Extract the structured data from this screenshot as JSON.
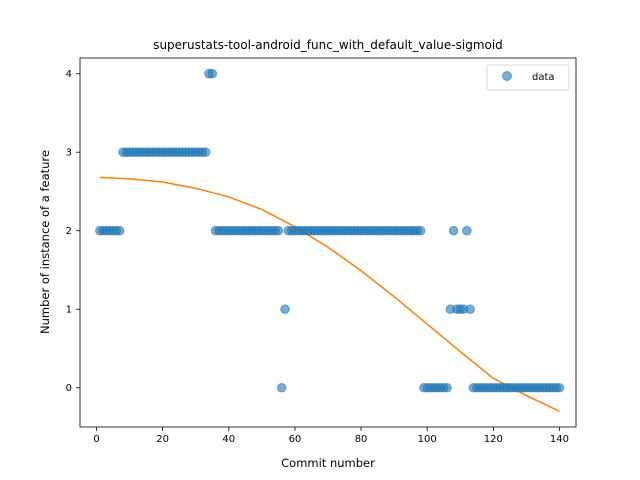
{
  "chart_data": {
    "type": "scatter",
    "title": "superustats-tool-android_func_with_default_value-sigmoid",
    "xlabel": "Commit number",
    "ylabel": "Number of instance of a feature",
    "xlim": [
      -5,
      145
    ],
    "ylim": [
      -0.5,
      4.2
    ],
    "xticks": [
      0,
      20,
      40,
      60,
      80,
      100,
      120,
      140
    ],
    "yticks": [
      0,
      1,
      2,
      3,
      4
    ],
    "grid": false,
    "legend_position": "top-right",
    "colors": {
      "data": "#1f77b4",
      "fit": "#ff7f0e"
    },
    "series": [
      {
        "name": "data",
        "kind": "scatter",
        "points": [
          [
            1,
            2
          ],
          [
            2,
            2
          ],
          [
            3,
            2
          ],
          [
            4,
            2
          ],
          [
            5,
            2
          ],
          [
            6,
            2
          ],
          [
            7,
            2
          ],
          [
            8,
            3
          ],
          [
            9,
            3
          ],
          [
            10,
            3
          ],
          [
            11,
            3
          ],
          [
            12,
            3
          ],
          [
            13,
            3
          ],
          [
            14,
            3
          ],
          [
            15,
            3
          ],
          [
            16,
            3
          ],
          [
            17,
            3
          ],
          [
            18,
            3
          ],
          [
            19,
            3
          ],
          [
            20,
            3
          ],
          [
            21,
            3
          ],
          [
            22,
            3
          ],
          [
            23,
            3
          ],
          [
            24,
            3
          ],
          [
            25,
            3
          ],
          [
            26,
            3
          ],
          [
            27,
            3
          ],
          [
            28,
            3
          ],
          [
            29,
            3
          ],
          [
            30,
            3
          ],
          [
            31,
            3
          ],
          [
            32,
            3
          ],
          [
            33,
            3
          ],
          [
            34,
            4
          ],
          [
            35,
            4
          ],
          [
            36,
            2
          ],
          [
            37,
            2
          ],
          [
            38,
            2
          ],
          [
            39,
            2
          ],
          [
            40,
            2
          ],
          [
            41,
            2
          ],
          [
            42,
            2
          ],
          [
            43,
            2
          ],
          [
            44,
            2
          ],
          [
            45,
            2
          ],
          [
            46,
            2
          ],
          [
            47,
            2
          ],
          [
            48,
            2
          ],
          [
            49,
            2
          ],
          [
            50,
            2
          ],
          [
            51,
            2
          ],
          [
            52,
            2
          ],
          [
            53,
            2
          ],
          [
            54,
            2
          ],
          [
            55,
            2
          ],
          [
            56,
            0
          ],
          [
            57,
            1
          ],
          [
            58,
            2
          ],
          [
            59,
            2
          ],
          [
            60,
            2
          ],
          [
            61,
            2
          ],
          [
            62,
            2
          ],
          [
            63,
            2
          ],
          [
            64,
            2
          ],
          [
            65,
            2
          ],
          [
            66,
            2
          ],
          [
            67,
            2
          ],
          [
            68,
            2
          ],
          [
            69,
            2
          ],
          [
            70,
            2
          ],
          [
            71,
            2
          ],
          [
            72,
            2
          ],
          [
            73,
            2
          ],
          [
            74,
            2
          ],
          [
            75,
            2
          ],
          [
            76,
            2
          ],
          [
            77,
            2
          ],
          [
            78,
            2
          ],
          [
            79,
            2
          ],
          [
            80,
            2
          ],
          [
            81,
            2
          ],
          [
            82,
            2
          ],
          [
            83,
            2
          ],
          [
            84,
            2
          ],
          [
            85,
            2
          ],
          [
            86,
            2
          ],
          [
            87,
            2
          ],
          [
            88,
            2
          ],
          [
            89,
            2
          ],
          [
            90,
            2
          ],
          [
            91,
            2
          ],
          [
            92,
            2
          ],
          [
            93,
            2
          ],
          [
            94,
            2
          ],
          [
            95,
            2
          ],
          [
            96,
            2
          ],
          [
            97,
            2
          ],
          [
            98,
            2
          ],
          [
            99,
            0
          ],
          [
            100,
            0
          ],
          [
            101,
            0
          ],
          [
            102,
            0
          ],
          [
            103,
            0
          ],
          [
            104,
            0
          ],
          [
            105,
            0
          ],
          [
            106,
            0
          ],
          [
            107,
            1
          ],
          [
            108,
            2
          ],
          [
            109,
            1
          ],
          [
            110,
            1
          ],
          [
            111,
            1
          ],
          [
            112,
            2
          ],
          [
            113,
            1
          ],
          [
            114,
            0
          ],
          [
            115,
            0
          ],
          [
            116,
            0
          ],
          [
            117,
            0
          ],
          [
            118,
            0
          ],
          [
            119,
            0
          ],
          [
            120,
            0
          ],
          [
            121,
            0
          ],
          [
            122,
            0
          ],
          [
            123,
            0
          ],
          [
            124,
            0
          ],
          [
            125,
            0
          ],
          [
            126,
            0
          ],
          [
            127,
            0
          ],
          [
            128,
            0
          ],
          [
            129,
            0
          ],
          [
            130,
            0
          ],
          [
            131,
            0
          ],
          [
            132,
            0
          ],
          [
            133,
            0
          ],
          [
            134,
            0
          ],
          [
            135,
            0
          ],
          [
            136,
            0
          ],
          [
            137,
            0
          ],
          [
            138,
            0
          ],
          [
            139,
            0
          ],
          [
            140,
            0
          ]
        ]
      },
      {
        "kind": "line",
        "points": [
          [
            1,
            2.68
          ],
          [
            10,
            2.66
          ],
          [
            20,
            2.62
          ],
          [
            30,
            2.54
          ],
          [
            40,
            2.43
          ],
          [
            50,
            2.27
          ],
          [
            60,
            2.05
          ],
          [
            70,
            1.79
          ],
          [
            80,
            1.49
          ],
          [
            90,
            1.16
          ],
          [
            100,
            0.81
          ],
          [
            110,
            0.46
          ],
          [
            120,
            0.12
          ],
          [
            130,
            -0.1
          ],
          [
            140,
            -0.3
          ]
        ]
      }
    ]
  }
}
